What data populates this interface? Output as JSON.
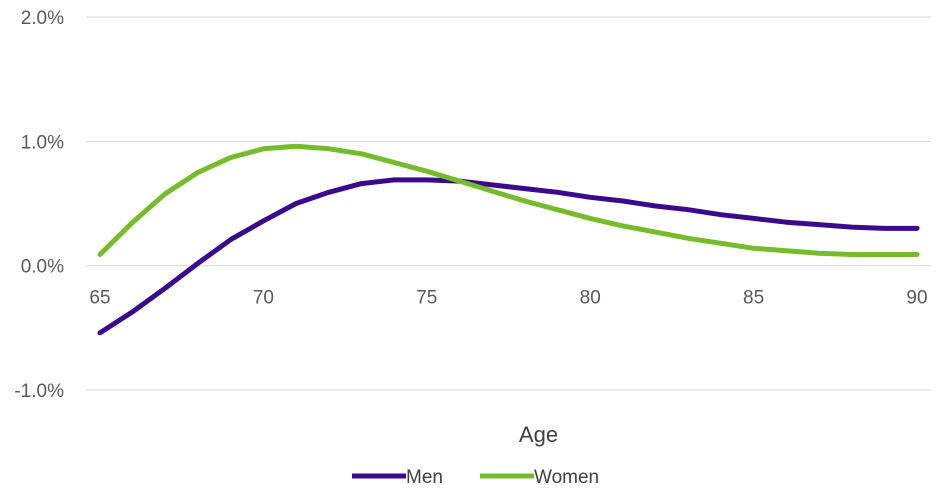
{
  "chart_data": {
    "type": "line",
    "title": "",
    "xlabel": "Age",
    "ylabel": "",
    "x": [
      65,
      66,
      67,
      68,
      69,
      70,
      71,
      72,
      73,
      74,
      75,
      76,
      77,
      78,
      79,
      80,
      81,
      82,
      83,
      84,
      85,
      86,
      87,
      88,
      89,
      90
    ],
    "xlim": [
      65,
      90
    ],
    "ylim": [
      -1.0,
      2.0
    ],
    "x_ticks": [
      65,
      70,
      75,
      80,
      85,
      90
    ],
    "x_tick_labels": [
      "65",
      "70",
      "75",
      "80",
      "85",
      "90"
    ],
    "y_ticks": [
      -1.0,
      0.0,
      1.0,
      2.0
    ],
    "y_tick_labels": [
      "-1.0%",
      "0.0%",
      "1.0%",
      "2.0%"
    ],
    "grid": "horizontal",
    "legend_position": "bottom",
    "series": [
      {
        "name": "Men",
        "color": "#3B0A8C",
        "values": [
          -0.54,
          -0.37,
          -0.18,
          0.02,
          0.21,
          0.36,
          0.5,
          0.59,
          0.66,
          0.69,
          0.69,
          0.68,
          0.65,
          0.62,
          0.59,
          0.55,
          0.52,
          0.48,
          0.45,
          0.41,
          0.38,
          0.35,
          0.33,
          0.31,
          0.3,
          0.3
        ]
      },
      {
        "name": "Women",
        "color": "#74BC2A",
        "values": [
          0.09,
          0.35,
          0.58,
          0.75,
          0.87,
          0.94,
          0.96,
          0.94,
          0.9,
          0.83,
          0.76,
          0.68,
          0.6,
          0.52,
          0.45,
          0.38,
          0.32,
          0.27,
          0.22,
          0.18,
          0.14,
          0.12,
          0.1,
          0.09,
          0.09,
          0.09
        ]
      }
    ]
  }
}
